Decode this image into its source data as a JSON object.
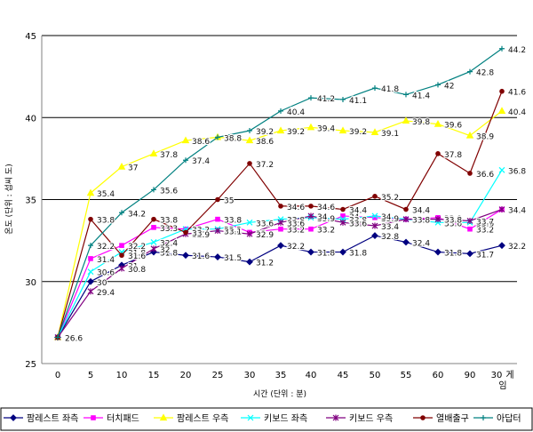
{
  "chart_data": {
    "type": "line",
    "title": "",
    "xlabel": "시간 (단위 : 분)",
    "ylabel": "온도 (단위 : 섭씨 도)",
    "ylim": [
      25,
      45
    ],
    "yticks": [
      25,
      30,
      35,
      40,
      45
    ],
    "categories": [
      "0",
      "5",
      "10",
      "15",
      "20",
      "25",
      "30",
      "35",
      "40",
      "45",
      "50",
      "55",
      "60",
      "90",
      "30 게임"
    ],
    "grid": true,
    "legend_position": "bottom",
    "series": [
      {
        "name": "팜레스트 좌측",
        "color": "#000080",
        "marker": "diamond",
        "values": [
          26.6,
          30,
          31,
          31.8,
          31.6,
          31.5,
          31.2,
          32.2,
          31.8,
          31.8,
          32.8,
          32.4,
          31.8,
          31.7,
          32.2
        ]
      },
      {
        "name": "터치패드",
        "color": "#ff00ff",
        "marker": "square",
        "values": [
          26.6,
          31.4,
          32.2,
          33.3,
          33.2,
          33.8,
          33,
          33.2,
          33.2,
          34,
          33.9,
          33.8,
          33.9,
          33.2,
          34.4
        ]
      },
      {
        "name": "팜레스트 우측",
        "color": "#ffff00",
        "marker": "triangle",
        "values": [
          26.6,
          35.4,
          37,
          37.8,
          38.6,
          38.8,
          38.6,
          39.2,
          39.4,
          39.2,
          39.1,
          39.8,
          39.6,
          38.9,
          40.4
        ]
      },
      {
        "name": "키보드 좌측",
        "color": "#00ffff",
        "marker": "x",
        "values": [
          26.6,
          30.6,
          31.8,
          32.4,
          33.2,
          33.2,
          33.6,
          33.8,
          33.9,
          33.8,
          34,
          33.8,
          33.6,
          33.6,
          36.8
        ]
      },
      {
        "name": "키보드 우측",
        "color": "#800080",
        "marker": "star",
        "values": [
          26.6,
          29.4,
          30.8,
          32,
          32.9,
          33.1,
          32.9,
          33.6,
          34,
          33.6,
          33.4,
          33.8,
          33.8,
          33.7,
          34.4
        ]
      },
      {
        "name": "열배출구",
        "color": "#800000",
        "marker": "circle",
        "values": [
          26.6,
          33.8,
          31.6,
          33.8,
          33,
          35,
          37.2,
          34.6,
          34.6,
          34.4,
          35.2,
          34.4,
          37.8,
          36.6,
          41.6
        ]
      },
      {
        "name": "아답터",
        "color": "#008080",
        "marker": "plus",
        "values": [
          26.6,
          32.2,
          34.2,
          35.6,
          37.4,
          38.8,
          39.2,
          40.4,
          41.2,
          41.1,
          41.8,
          41.4,
          42,
          42.8,
          44.2
        ]
      }
    ]
  }
}
